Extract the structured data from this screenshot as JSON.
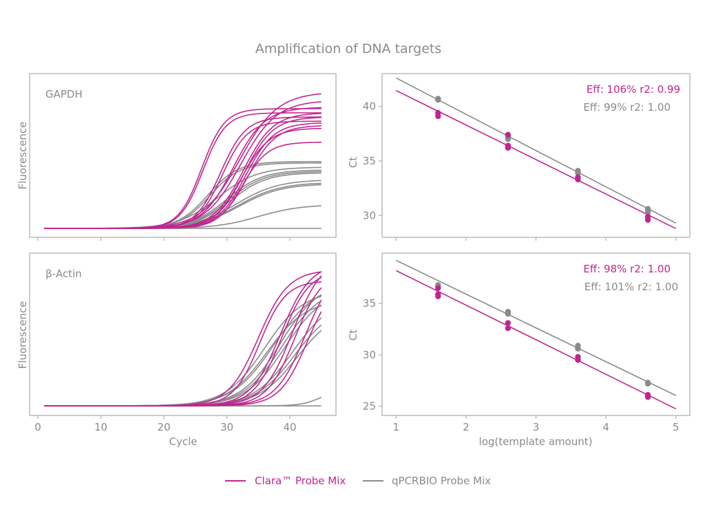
{
  "colors": {
    "clara": "#c0258f",
    "qpcrbio": "#8a8a8a",
    "text": "#8a8a8a",
    "frame": "#b0b0b0"
  },
  "chart_data": {
    "title": "Amplification of DNA targets",
    "legend": {
      "placement": "bottom-center",
      "entries": [
        {
          "label": "Clara™ Probe Mix",
          "color_key": "clara"
        },
        {
          "label": "qPCRBIO Probe Mix",
          "color_key": "qpcrbio"
        }
      ]
    },
    "panels": [
      {
        "id": "gapdh-amp",
        "type": "line",
        "label": "GAPDH",
        "xlabel": "",
        "ylabel": "Fluorescence",
        "xlim": [
          0,
          47
        ],
        "ylim": [
          0,
          1
        ],
        "xticks": [
          0,
          10,
          20,
          30,
          40
        ],
        "xtick_labels_shown": false,
        "series": [
          {
            "name": "Clara™ Probe Mix",
            "color_key": "clara",
            "curves": [
              {
                "ct": 26.0,
                "plateau": 0.86,
                "k": 0.55
              },
              {
                "ct": 26.2,
                "plateau": 0.83,
                "k": 0.55
              },
              {
                "ct": 29.0,
                "plateau": 0.8,
                "k": 0.5
              },
              {
                "ct": 29.3,
                "plateau": 0.77,
                "k": 0.5
              },
              {
                "ct": 32.0,
                "plateau": 0.98,
                "k": 0.33
              },
              {
                "ct": 32.2,
                "plateau": 0.92,
                "k": 0.35
              },
              {
                "ct": 32.6,
                "plateau": 0.83,
                "k": 0.42
              },
              {
                "ct": 32.8,
                "plateau": 0.8,
                "k": 0.44
              },
              {
                "ct": 33.0,
                "plateau": 0.76,
                "k": 0.45
              },
              {
                "ct": 33.3,
                "plateau": 0.74,
                "k": 0.45
              },
              {
                "ct": 32.3,
                "plateau": 0.72,
                "k": 0.45
              },
              {
                "ct": 32.5,
                "plateau": 0.62,
                "k": 0.5
              },
              {
                "ct": 31.0,
                "plateau": 0.87,
                "k": 0.4
              }
            ]
          },
          {
            "name": "qPCRBIO Probe Mix",
            "color_key": "qpcrbio",
            "curves": [
              {
                "ct": 27.0,
                "plateau": 0.48,
                "k": 0.42
              },
              {
                "ct": 27.3,
                "plateau": 0.47,
                "k": 0.42
              },
              {
                "ct": 28.5,
                "plateau": 0.44,
                "k": 0.32
              },
              {
                "ct": 30.0,
                "plateau": 0.42,
                "k": 0.35
              },
              {
                "ct": 30.3,
                "plateau": 0.41,
                "k": 0.35
              },
              {
                "ct": 30.6,
                "plateau": 0.4,
                "k": 0.35
              },
              {
                "ct": 31.5,
                "plateau": 0.35,
                "k": 0.3
              },
              {
                "ct": 31.8,
                "plateau": 0.33,
                "k": 0.3
              },
              {
                "ct": 32.0,
                "plateau": 0.32,
                "k": 0.3
              },
              {
                "ct": 35.0,
                "plateau": 0.17,
                "k": 0.3
              },
              {
                "ct": 99,
                "plateau": 0.0,
                "k": 0.3
              }
            ]
          }
        ]
      },
      {
        "id": "actin-amp",
        "type": "line",
        "label": "β-Actin",
        "xlabel": "Cycle",
        "ylabel": "Fluorescence",
        "xlim": [
          0,
          47
        ],
        "ylim": [
          0,
          1
        ],
        "xticks": [
          0,
          10,
          20,
          30,
          40
        ],
        "xtick_labels_shown": true,
        "series": [
          {
            "name": "Clara™ Probe Mix",
            "color_key": "clara",
            "curves": [
              {
                "ct": 35.0,
                "plateau": 1.0,
                "k": 0.42
              },
              {
                "ct": 35.2,
                "plateau": 0.92,
                "k": 0.48
              },
              {
                "ct": 38.5,
                "plateau": 1.05,
                "k": 0.42
              },
              {
                "ct": 38.7,
                "plateau": 1.0,
                "k": 0.45
              },
              {
                "ct": 40.5,
                "plateau": 1.1,
                "k": 0.42
              },
              {
                "ct": 40.8,
                "plateau": 1.0,
                "k": 0.45
              },
              {
                "ct": 42.5,
                "plateau": 1.05,
                "k": 0.42
              },
              {
                "ct": 42.8,
                "plateau": 0.95,
                "k": 0.45
              }
            ]
          },
          {
            "name": "qPCRBIO Probe Mix",
            "color_key": "qpcrbio",
            "curves": [
              {
                "ct": 36.0,
                "plateau": 0.85,
                "k": 0.32
              },
              {
                "ct": 36.3,
                "plateau": 0.78,
                "k": 0.32
              },
              {
                "ct": 37.5,
                "plateau": 0.9,
                "k": 0.3
              },
              {
                "ct": 38.5,
                "plateau": 0.92,
                "k": 0.32
              },
              {
                "ct": 38.8,
                "plateau": 0.88,
                "k": 0.32
              },
              {
                "ct": 39.2,
                "plateau": 0.86,
                "k": 0.32
              },
              {
                "ct": 40.5,
                "plateau": 0.8,
                "k": 0.32
              },
              {
                "ct": 40.8,
                "plateau": 0.75,
                "k": 0.32
              },
              {
                "ct": 41.2,
                "plateau": 0.72,
                "k": 0.32
              },
              {
                "ct": 45.5,
                "plateau": 0.15,
                "k": 0.6
              },
              {
                "ct": 99,
                "plateau": 0.0,
                "k": 0.3
              }
            ]
          }
        ]
      },
      {
        "id": "gapdh-std",
        "type": "scatter",
        "label": "",
        "xlabel": "",
        "ylabel": "Ct",
        "xlim": [
          0.8,
          5.2
        ],
        "ylim": [
          28.0,
          43.0
        ],
        "xticks": [
          1,
          2,
          3,
          4,
          5
        ],
        "xtick_labels_shown": false,
        "yticks": [
          30,
          35,
          40
        ],
        "annotations": [
          {
            "text": "Eff: 106% r2: 0.99",
            "color_key": "clara"
          },
          {
            "text": "Eff: 99% r2: 1.00",
            "color_key": "qpcrbio"
          }
        ],
        "series": [
          {
            "name": "qPCRBIO Probe Mix",
            "color_key": "qpcrbio",
            "fit": {
              "x": [
                1,
                5
              ],
              "y": [
                42.6,
                29.3
              ]
            },
            "points": [
              [
                1.6,
                40.7
              ],
              [
                1.6,
                40.6
              ],
              [
                2.6,
                37.3
              ],
              [
                2.6,
                37.0
              ],
              [
                2.6,
                37.1
              ],
              [
                3.6,
                34.1
              ],
              [
                3.6,
                33.9
              ],
              [
                4.6,
                30.6
              ],
              [
                4.6,
                30.3
              ],
              [
                4.6,
                30.4
              ]
            ]
          },
          {
            "name": "Clara™ Probe Mix",
            "color_key": "clara",
            "fit": {
              "x": [
                1,
                5
              ],
              "y": [
                41.45,
                28.8
              ]
            },
            "points": [
              [
                1.6,
                39.4
              ],
              [
                1.6,
                39.1
              ],
              [
                2.6,
                37.4
              ],
              [
                2.6,
                36.4
              ],
              [
                2.6,
                36.2
              ],
              [
                3.6,
                33.5
              ],
              [
                3.6,
                33.3
              ],
              [
                4.6,
                29.9
              ],
              [
                4.6,
                29.6
              ]
            ]
          }
        ]
      },
      {
        "id": "actin-std",
        "type": "scatter",
        "label": "",
        "xlabel": "log(template amount)",
        "ylabel": "Ct",
        "xlim": [
          0.8,
          5.2
        ],
        "ylim": [
          24.1,
          39.9
        ],
        "xticks": [
          1,
          2,
          3,
          4,
          5
        ],
        "xtick_labels_shown": true,
        "yticks": [
          25,
          30,
          35
        ],
        "annotations": [
          {
            "text": "Eff: 98% r2: 1.00",
            "color_key": "clara"
          },
          {
            "text": "Eff: 101% r2: 1.00",
            "color_key": "qpcrbio"
          }
        ],
        "series": [
          {
            "name": "qPCRBIO Probe Mix",
            "color_key": "qpcrbio",
            "fit": {
              "x": [
                1,
                5
              ],
              "y": [
                39.2,
                26.05
              ]
            },
            "points": [
              [
                1.6,
                36.8
              ],
              [
                1.6,
                36.6
              ],
              [
                2.6,
                34.2
              ],
              [
                2.6,
                34.0
              ],
              [
                3.6,
                30.9
              ],
              [
                3.6,
                30.6
              ],
              [
                4.6,
                27.3
              ],
              [
                4.6,
                27.2
              ]
            ]
          },
          {
            "name": "Clara™ Probe Mix",
            "color_key": "clara",
            "fit": {
              "x": [
                1,
                5
              ],
              "y": [
                38.2,
                24.75
              ]
            },
            "points": [
              [
                1.6,
                36.5
              ],
              [
                1.6,
                35.9
              ],
              [
                1.6,
                35.7
              ],
              [
                2.6,
                33.1
              ],
              [
                2.6,
                32.6
              ],
              [
                3.6,
                29.8
              ],
              [
                3.6,
                29.5
              ],
              [
                4.6,
                26.1
              ],
              [
                4.6,
                25.9
              ]
            ]
          }
        ]
      }
    ]
  }
}
